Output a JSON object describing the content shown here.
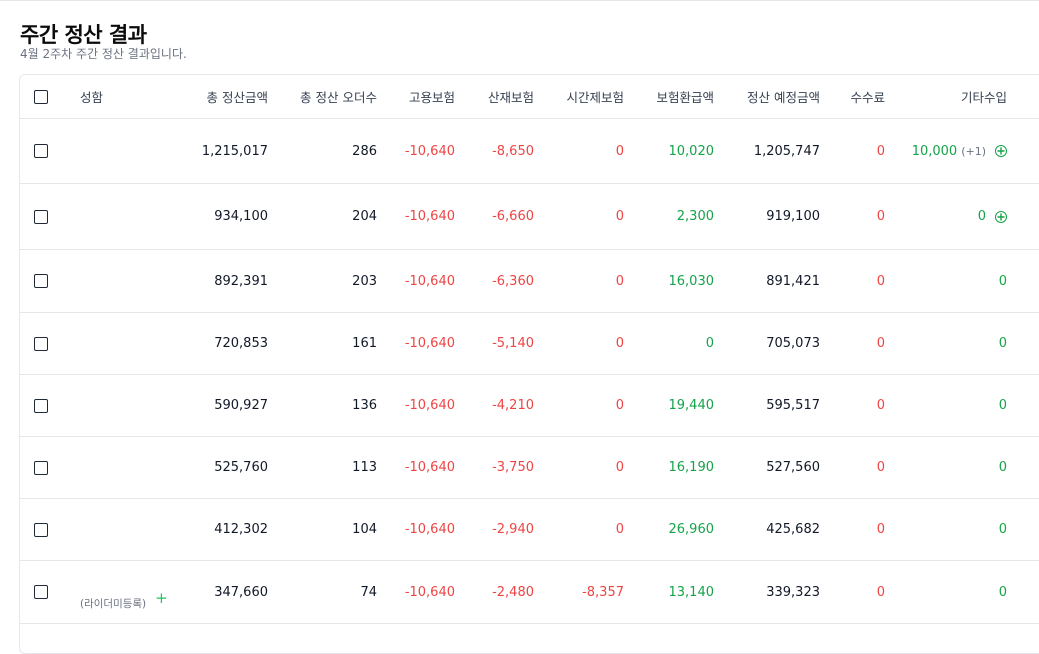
{
  "page": {
    "title": "주간 정산 결과",
    "subtitle": "4월 2주차 주간 정산 결과입니다."
  },
  "table": {
    "headers": {
      "name": "성함",
      "total": "총 정산금액",
      "orders": "총 정산 오더수",
      "employment": "고용보험",
      "accident": "산재보험",
      "parttime": "시간제보험",
      "refund": "보험환급액",
      "expected": "정산 예정금액",
      "fee": "수수료",
      "etc": "기타수입"
    },
    "rows": [
      {
        "name": "",
        "total": "1,215,017",
        "orders": "286",
        "employment": "-10,640",
        "accident": "-8,650",
        "parttime": "0",
        "refund": "10,020",
        "expected": "1,205,747",
        "fee": "0",
        "etc": "10,000",
        "etc_extra": "(+1)",
        "has_add": true
      },
      {
        "name": "",
        "total": "934,100",
        "orders": "204",
        "employment": "-10,640",
        "accident": "-6,660",
        "parttime": "0",
        "refund": "2,300",
        "expected": "919,100",
        "fee": "0",
        "etc": "0",
        "etc_extra": "",
        "has_add": true
      },
      {
        "name": "",
        "total": "892,391",
        "orders": "203",
        "employment": "-10,640",
        "accident": "-6,360",
        "parttime": "0",
        "refund": "16,030",
        "expected": "891,421",
        "fee": "0",
        "etc": "0",
        "etc_extra": "",
        "has_add": false
      },
      {
        "name": "",
        "total": "720,853",
        "orders": "161",
        "employment": "-10,640",
        "accident": "-5,140",
        "parttime": "0",
        "refund": "0",
        "expected": "705,073",
        "fee": "0",
        "etc": "0",
        "etc_extra": "",
        "has_add": false
      },
      {
        "name": "",
        "total": "590,927",
        "orders": "136",
        "employment": "-10,640",
        "accident": "-4,210",
        "parttime": "0",
        "refund": "19,440",
        "expected": "595,517",
        "fee": "0",
        "etc": "0",
        "etc_extra": "",
        "has_add": false
      },
      {
        "name": "",
        "total": "525,760",
        "orders": "113",
        "employment": "-10,640",
        "accident": "-3,750",
        "parttime": "0",
        "refund": "16,190",
        "expected": "527,560",
        "fee": "0",
        "etc": "0",
        "etc_extra": "",
        "has_add": false
      },
      {
        "name": "",
        "total": "412,302",
        "orders": "104",
        "employment": "-10,640",
        "accident": "-2,940",
        "parttime": "0",
        "refund": "26,960",
        "expected": "425,682",
        "fee": "0",
        "etc": "0",
        "etc_extra": "",
        "has_add": false
      },
      {
        "name": "(라이더미등록)",
        "total": "347,660",
        "orders": "74",
        "employment": "-10,640",
        "accident": "-2,480",
        "parttime": "-8,357",
        "refund": "13,140",
        "expected": "339,323",
        "fee": "0",
        "etc": "0",
        "etc_extra": "",
        "has_add": false,
        "register_icon": "plus-icon"
      }
    ]
  },
  "colors": {
    "negative": "#ef4444",
    "positive": "#16a34a",
    "border": "#e5e7eb"
  }
}
